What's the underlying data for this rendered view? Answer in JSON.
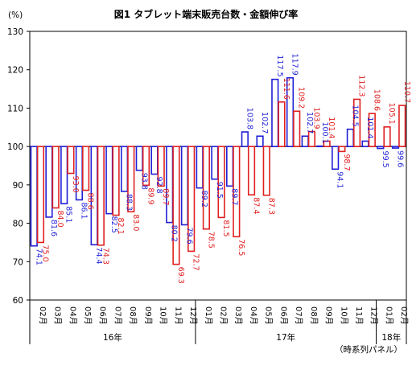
{
  "chart_data": {
    "type": "bar",
    "title": "図1 タブレット端末販売台数・金額伸び率",
    "ylabel": "(%)",
    "ylim": [
      60,
      130
    ],
    "yticks": [
      60,
      70,
      80,
      90,
      100,
      110,
      120,
      130
    ],
    "baseline": 100,
    "grid": false,
    "legend": "none",
    "categories": [
      "02月",
      "03月",
      "04月",
      "05月",
      "06月",
      "07月",
      "08月",
      "09月",
      "10月",
      "11月",
      "12月",
      "01月",
      "02月",
      "03月",
      "04月",
      "05月",
      "06月",
      "07月",
      "08月",
      "09月",
      "10月",
      "11月",
      "12月",
      "01月",
      "02月"
    ],
    "year_groups": [
      {
        "label": "16年",
        "start": 0,
        "end": 10
      },
      {
        "label": "17年",
        "start": 11,
        "end": 22
      },
      {
        "label": "18年",
        "start": 23,
        "end": 24
      }
    ],
    "series": [
      {
        "color": "#1f1fd6",
        "fill": "#ffffff",
        "values": [
          74.1,
          81.6,
          85.1,
          86.1,
          74.4,
          82.5,
          88.3,
          93.8,
          92.8,
          80.2,
          79.6,
          89.2,
          91.5,
          89.7,
          103.8,
          102.7,
          117.5,
          117.9,
          102.7,
          100.1,
          94.1,
          104.5,
          101.4,
          99.5,
          99.6
        ]
      },
      {
        "color": "#e02020",
        "fill": "#ffffff",
        "values": [
          75.0,
          84.0,
          93.0,
          88.6,
          74.3,
          82.1,
          83.0,
          89.9,
          89.7,
          69.3,
          72.7,
          78.5,
          81.5,
          76.5,
          87.4,
          87.3,
          111.6,
          109.2,
          103.9,
          101.4,
          98.7,
          112.3,
          108.6,
          105.1,
          110.7
        ]
      }
    ],
    "value_labels": [
      [
        "74.1",
        "81.6",
        "85.1",
        "86.1",
        "74.4",
        "82.5",
        "88.3",
        "93.8",
        "92.8",
        "80.2",
        "79.6",
        "89.2",
        "91.5",
        "89.7",
        "103.8",
        "102.7",
        "117.5",
        "117.9",
        "102.7",
        "100.1",
        "94.1",
        "104.5",
        "101.4",
        "99.5",
        "99.6"
      ],
      [
        "75.0",
        "84.0",
        "93.0",
        "88.6",
        "74.3",
        "82.1",
        "83.0",
        "89.9",
        "89.7",
        "69.3",
        "72.7",
        "78.5",
        "81.5",
        "76.5",
        "87.4",
        "87.3",
        "111.6",
        "109.2",
        "103.9",
        "101.4",
        "98.7",
        "112.3",
        "108.6",
        "105.1",
        "110.7"
      ]
    ],
    "note": "（時系列パネル）"
  }
}
